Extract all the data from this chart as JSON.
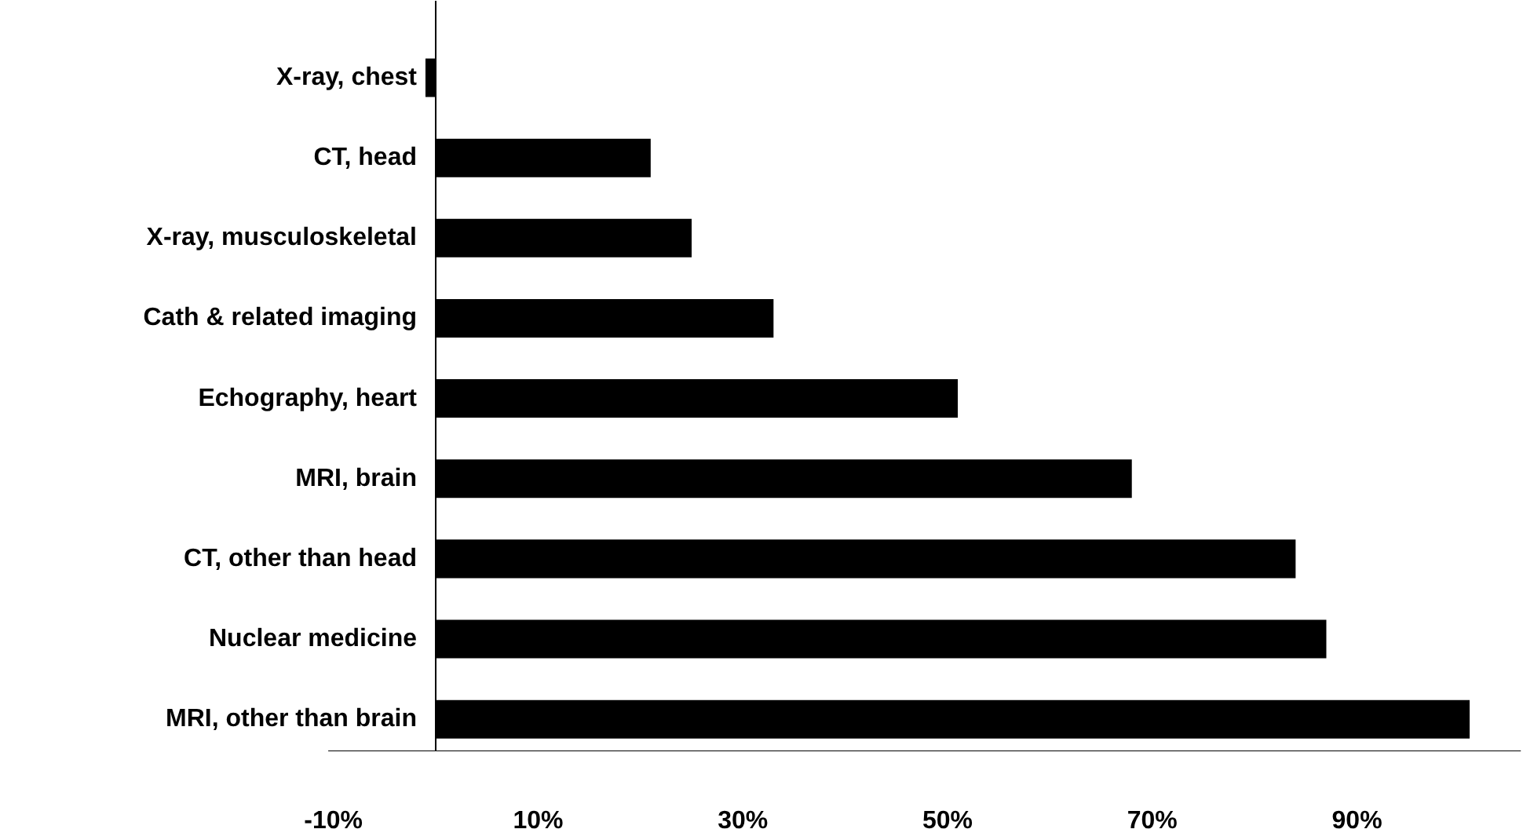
{
  "chart_data": {
    "type": "bar",
    "orientation": "horizontal",
    "categories": [
      "X-ray, chest",
      "CT, head",
      "X-ray, musculoskeletal",
      "Cath & related imaging",
      "Echography, heart",
      "MRI, brain",
      "CT, other than head",
      "Nuclear medicine",
      "MRI, other than brain"
    ],
    "values": [
      -1,
      21,
      25,
      33,
      51,
      68,
      84,
      87,
      101
    ],
    "color": "#000000",
    "xlim": [
      -10.5,
      106
    ],
    "xticks": [
      {
        "value": -10,
        "label": "-10%"
      },
      {
        "value": 10,
        "label": "10%"
      },
      {
        "value": 30,
        "label": "30%"
      },
      {
        "value": 50,
        "label": "50%"
      },
      {
        "value": 70,
        "label": "70%"
      },
      {
        "value": 90,
        "label": "90%"
      }
    ]
  }
}
